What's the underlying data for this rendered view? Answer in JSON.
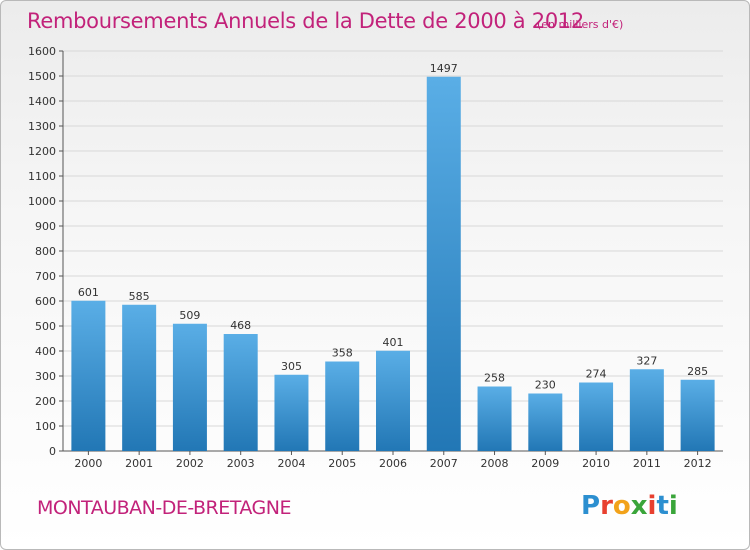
{
  "header": {
    "title": "Remboursements Annuels de la Dette de 2000 à 2012",
    "unit_note": "(en milliers d'€)"
  },
  "footer": {
    "commune": "MONTAUBAN-DE-BRETAGNE",
    "logo_text": "Proxiti",
    "logo_letters": [
      "P",
      "r",
      "o",
      "x",
      "i",
      "t",
      "i"
    ],
    "logo_colors": [
      "#2c8fd0",
      "#e8402f",
      "#f2a21a",
      "#3aa53a",
      "#e8402f",
      "#2c8fd0",
      "#3aa53a"
    ]
  },
  "colors": {
    "accent": "#c2227a",
    "bar_top": "#5aaee6",
    "bar_bottom": "#2277b5",
    "grid": "#d8d8d8",
    "axis": "#555555"
  },
  "chart_data": {
    "type": "bar",
    "title": "Remboursements Annuels de la Dette de 2000 à 2012",
    "xlabel": "",
    "ylabel": "",
    "categories": [
      "2000",
      "2001",
      "2002",
      "2003",
      "2004",
      "2005",
      "2006",
      "2007",
      "2008",
      "2009",
      "2010",
      "2011",
      "2012"
    ],
    "values": [
      601,
      585,
      509,
      468,
      305,
      358,
      401,
      1497,
      258,
      230,
      274,
      327,
      285
    ],
    "ylim": [
      0,
      1600
    ],
    "yticks": [
      0,
      100,
      200,
      300,
      400,
      500,
      600,
      700,
      800,
      900,
      1000,
      1100,
      1200,
      1300,
      1400,
      1500,
      1600
    ],
    "grid": true,
    "data_labels": true
  }
}
